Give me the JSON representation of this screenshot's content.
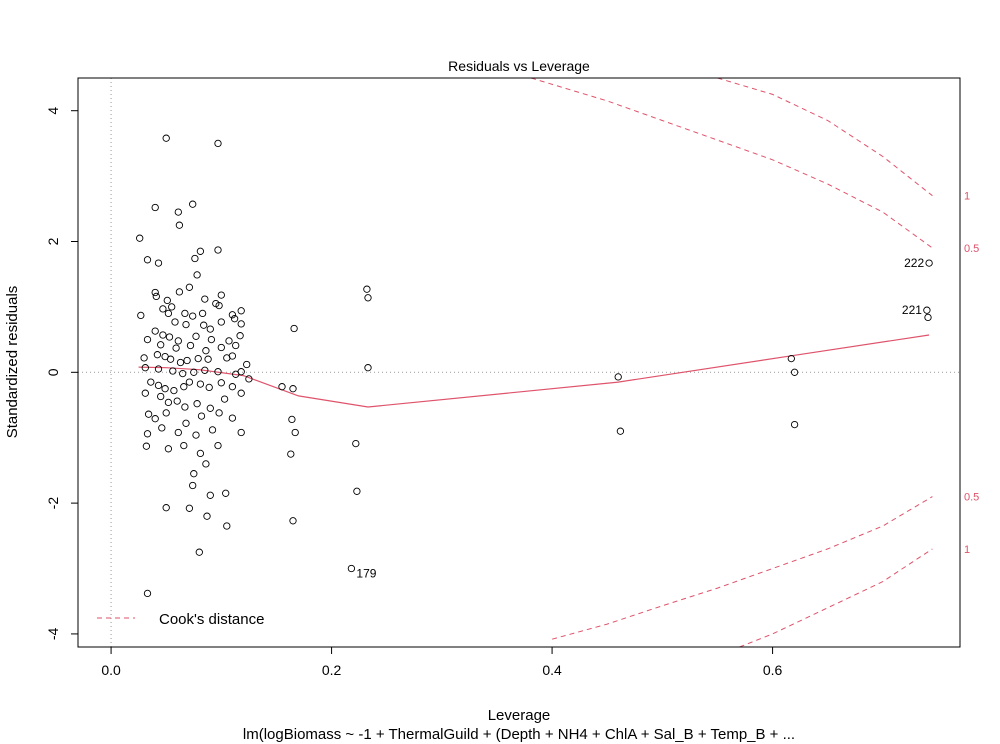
{
  "chart_data": {
    "type": "scatter",
    "title": "Residuals vs Leverage",
    "xlabel": "Leverage",
    "ylabel": "Standardized residuals",
    "subtitle": "lm(logBiomass ~ -1 + ThermalGuild + (Depth + NH4 + ChlA + Sal_B + Temp_B +  ...",
    "xlim": [
      -0.03,
      0.77
    ],
    "ylim": [
      -4.2,
      4.5
    ],
    "x_ticks": [
      0.0,
      0.2,
      0.4,
      0.6
    ],
    "x_tick_labels": [
      "0.0",
      "0.2",
      "0.4",
      "0.6"
    ],
    "y_ticks": [
      -4,
      -2,
      0,
      2,
      4
    ],
    "y_tick_labels": [
      "-4",
      "-2",
      "0",
      "2",
      "4"
    ],
    "grid": false,
    "legend": {
      "position": "bottom-left",
      "label": "Cook's distance"
    },
    "colors": {
      "points": "#000000",
      "smoother": "#df536b",
      "cook": "#df536b",
      "reference": "#999999"
    },
    "points": [
      [
        0.05,
        3.58
      ],
      [
        0.097,
        3.5
      ],
      [
        0.04,
        2.52
      ],
      [
        0.074,
        2.57
      ],
      [
        0.061,
        2.45
      ],
      [
        0.026,
        2.05
      ],
      [
        0.062,
        2.25
      ],
      [
        0.033,
        1.72
      ],
      [
        0.043,
        1.67
      ],
      [
        0.081,
        1.85
      ],
      [
        0.097,
        1.87
      ],
      [
        0.076,
        1.74
      ],
      [
        0.078,
        1.49
      ],
      [
        0.071,
        1.3
      ],
      [
        0.062,
        1.23
      ],
      [
        0.04,
        1.22
      ],
      [
        0.041,
        1.16
      ],
      [
        0.051,
        1.1
      ],
      [
        0.085,
        1.12
      ],
      [
        0.1,
        1.18
      ],
      [
        0.095,
        1.05
      ],
      [
        0.098,
        1.02
      ],
      [
        0.055,
        1.0
      ],
      [
        0.047,
        0.97
      ],
      [
        0.052,
        0.9
      ],
      [
        0.067,
        0.9
      ],
      [
        0.074,
        0.86
      ],
      [
        0.083,
        0.9
      ],
      [
        0.11,
        0.88
      ],
      [
        0.118,
        0.94
      ],
      [
        0.027,
        0.87
      ],
      [
        0.058,
        0.77
      ],
      [
        0.068,
        0.73
      ],
      [
        0.084,
        0.72
      ],
      [
        0.09,
        0.66
      ],
      [
        0.1,
        0.77
      ],
      [
        0.112,
        0.82
      ],
      [
        0.118,
        0.74
      ],
      [
        0.04,
        0.63
      ],
      [
        0.047,
        0.57
      ],
      [
        0.053,
        0.54
      ],
      [
        0.061,
        0.48
      ],
      [
        0.077,
        0.55
      ],
      [
        0.091,
        0.5
      ],
      [
        0.107,
        0.48
      ],
      [
        0.117,
        0.56
      ],
      [
        0.033,
        0.5
      ],
      [
        0.045,
        0.42
      ],
      [
        0.059,
        0.37
      ],
      [
        0.072,
        0.41
      ],
      [
        0.086,
        0.33
      ],
      [
        0.1,
        0.38
      ],
      [
        0.113,
        0.41
      ],
      [
        0.03,
        0.22
      ],
      [
        0.042,
        0.27
      ],
      [
        0.049,
        0.24
      ],
      [
        0.054,
        0.2
      ],
      [
        0.063,
        0.15
      ],
      [
        0.069,
        0.18
      ],
      [
        0.079,
        0.21
      ],
      [
        0.088,
        0.2
      ],
      [
        0.105,
        0.22
      ],
      [
        0.11,
        0.25
      ],
      [
        0.123,
        0.12
      ],
      [
        0.031,
        0.07
      ],
      [
        0.043,
        0.05
      ],
      [
        0.056,
        0.02
      ],
      [
        0.065,
        -0.02
      ],
      [
        0.075,
        0.0
      ],
      [
        0.085,
        0.03
      ],
      [
        0.097,
        0.01
      ],
      [
        0.113,
        -0.03
      ],
      [
        0.118,
        0.01
      ],
      [
        0.036,
        -0.15
      ],
      [
        0.043,
        -0.2
      ],
      [
        0.049,
        -0.25
      ],
      [
        0.057,
        -0.28
      ],
      [
        0.066,
        -0.22
      ],
      [
        0.071,
        -0.15
      ],
      [
        0.081,
        -0.18
      ],
      [
        0.089,
        -0.23
      ],
      [
        0.1,
        -0.16
      ],
      [
        0.11,
        -0.22
      ],
      [
        0.031,
        -0.32
      ],
      [
        0.045,
        -0.37
      ],
      [
        0.052,
        -0.46
      ],
      [
        0.06,
        -0.44
      ],
      [
        0.067,
        -0.53
      ],
      [
        0.078,
        -0.48
      ],
      [
        0.09,
        -0.55
      ],
      [
        0.103,
        -0.41
      ],
      [
        0.118,
        -0.32
      ],
      [
        0.034,
        -0.64
      ],
      [
        0.04,
        -0.71
      ],
      [
        0.05,
        -0.62
      ],
      [
        0.068,
        -0.78
      ],
      [
        0.082,
        -0.67
      ],
      [
        0.098,
        -0.62
      ],
      [
        0.11,
        -0.7
      ],
      [
        0.033,
        -0.94
      ],
      [
        0.046,
        -0.85
      ],
      [
        0.061,
        -0.92
      ],
      [
        0.077,
        -0.96
      ],
      [
        0.092,
        -0.88
      ],
      [
        0.118,
        -0.92
      ],
      [
        0.032,
        -1.13
      ],
      [
        0.052,
        -1.17
      ],
      [
        0.066,
        -1.12
      ],
      [
        0.081,
        -1.24
      ],
      [
        0.097,
        -1.12
      ],
      [
        0.075,
        -1.55
      ],
      [
        0.086,
        -1.4
      ],
      [
        0.074,
        -1.73
      ],
      [
        0.09,
        -1.88
      ],
      [
        0.104,
        -1.85
      ],
      [
        0.05,
        -2.07
      ],
      [
        0.071,
        -2.08
      ],
      [
        0.087,
        -2.2
      ],
      [
        0.105,
        -2.35
      ],
      [
        0.08,
        -2.75
      ],
      [
        0.033,
        -3.38
      ],
      [
        0.125,
        -0.1
      ],
      [
        0.155,
        -0.22
      ],
      [
        0.165,
        -0.25
      ],
      [
        0.166,
        0.67
      ],
      [
        0.164,
        -0.72
      ],
      [
        0.167,
        -0.92
      ],
      [
        0.163,
        -1.25
      ],
      [
        0.165,
        -2.27
      ],
      [
        0.222,
        -1.09
      ],
      [
        0.223,
        -1.82
      ],
      [
        0.218,
        -3.0
      ],
      [
        0.232,
        1.27
      ],
      [
        0.233,
        1.14
      ],
      [
        0.233,
        0.07
      ],
      [
        0.46,
        -0.07
      ],
      [
        0.462,
        -0.9
      ],
      [
        0.617,
        0.21
      ],
      [
        0.62,
        0.0
      ],
      [
        0.62,
        -0.8
      ],
      [
        0.742,
        1.67
      ],
      [
        0.74,
        0.95
      ],
      [
        0.741,
        0.84
      ]
    ],
    "labeled_points": [
      {
        "label": "222",
        "x": 0.742,
        "y": 1.67
      },
      {
        "label": "221",
        "x": 0.74,
        "y": 0.95
      },
      {
        "label": "179",
        "x": 0.218,
        "y": -3.0
      }
    ],
    "smoother": [
      [
        0.025,
        0.08
      ],
      [
        0.05,
        0.07
      ],
      [
        0.08,
        0.04
      ],
      [
        0.12,
        -0.05
      ],
      [
        0.17,
        -0.36
      ],
      [
        0.233,
        -0.53
      ],
      [
        0.46,
        -0.15
      ],
      [
        0.62,
        0.26
      ],
      [
        0.742,
        0.57
      ]
    ],
    "cook_contours": [
      {
        "level": 0.5,
        "label": "0.5",
        "upper": [
          [
            0.381,
            4.5
          ],
          [
            0.45,
            4.15
          ],
          [
            0.5,
            3.85
          ],
          [
            0.55,
            3.55
          ],
          [
            0.6,
            3.25
          ],
          [
            0.65,
            2.88
          ],
          [
            0.7,
            2.45
          ],
          [
            0.745,
            1.9
          ]
        ],
        "lower": [
          [
            0.4,
            -4.08
          ],
          [
            0.45,
            -3.85
          ],
          [
            0.5,
            -3.57
          ],
          [
            0.55,
            -3.3
          ],
          [
            0.6,
            -3.0
          ],
          [
            0.65,
            -2.7
          ],
          [
            0.7,
            -2.35
          ],
          [
            0.745,
            -1.9
          ]
        ]
      },
      {
        "level": 1,
        "label": "1",
        "upper": [
          [
            0.55,
            4.5
          ],
          [
            0.6,
            4.25
          ],
          [
            0.65,
            3.85
          ],
          [
            0.7,
            3.3
          ],
          [
            0.745,
            2.7
          ]
        ],
        "lower": [
          [
            0.57,
            -4.2
          ],
          [
            0.6,
            -4.0
          ],
          [
            0.65,
            -3.6
          ],
          [
            0.7,
            -3.2
          ],
          [
            0.745,
            -2.7
          ]
        ]
      }
    ]
  }
}
